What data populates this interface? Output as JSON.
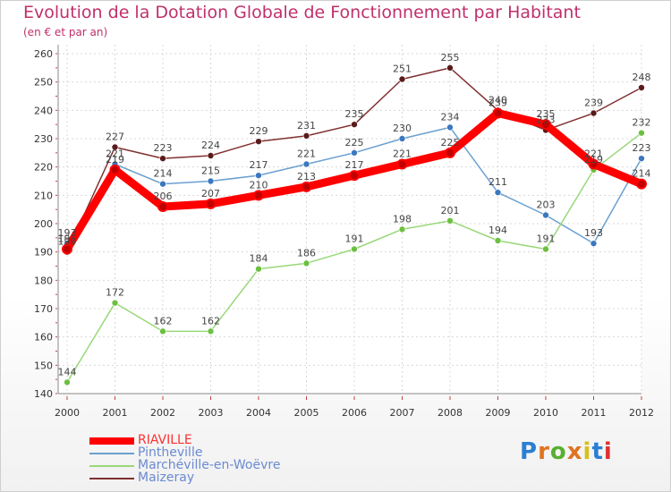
{
  "title": "Evolution de la Dotation Globale de Fonctionnement par Habitant",
  "subtitle": "(en € et par an)",
  "brand": {
    "text": "Proxiti",
    "letter_colors": [
      "#2a7fd4",
      "#e0731f",
      "#58b030",
      "#e0731f",
      "#d6c01a",
      "#2a7fd4",
      "#e03030"
    ]
  },
  "chart_data": {
    "type": "line",
    "x": [
      "2000",
      "2001",
      "2002",
      "2003",
      "2004",
      "2005",
      "2006",
      "2007",
      "2008",
      "2009",
      "2010",
      "2011",
      "2012"
    ],
    "ylim": [
      140,
      260
    ],
    "yticks": [
      140,
      150,
      160,
      170,
      180,
      190,
      200,
      210,
      220,
      230,
      240,
      250,
      260
    ],
    "grid": true,
    "legend_position": "bottom-left",
    "series": [
      {
        "name": "RIAVILLE",
        "color": "#ff0000",
        "values": [
          191,
          219,
          206,
          207,
          210,
          213,
          217,
          221,
          225,
          239,
          235,
          221,
          214
        ],
        "label_color": "#444444"
      },
      {
        "name": "Pintheville",
        "color": "#6aa0d0",
        "values": [
          193,
          221,
          214,
          215,
          217,
          221,
          225,
          230,
          234,
          211,
          203,
          193,
          223
        ],
        "label_color": "#444444"
      },
      {
        "name": "Marchéville-en-Woëvre",
        "color": "#98d878",
        "values": [
          144,
          172,
          162,
          162,
          184,
          186,
          191,
          198,
          201,
          194,
          191,
          219,
          232
        ],
        "label_color": "#444444"
      },
      {
        "name": "Maizeray",
        "color": "#803030",
        "values": [
          190,
          227,
          223,
          224,
          229,
          231,
          235,
          251,
          255,
          240,
          233,
          239,
          248
        ],
        "label_color": "#444444"
      }
    ]
  }
}
